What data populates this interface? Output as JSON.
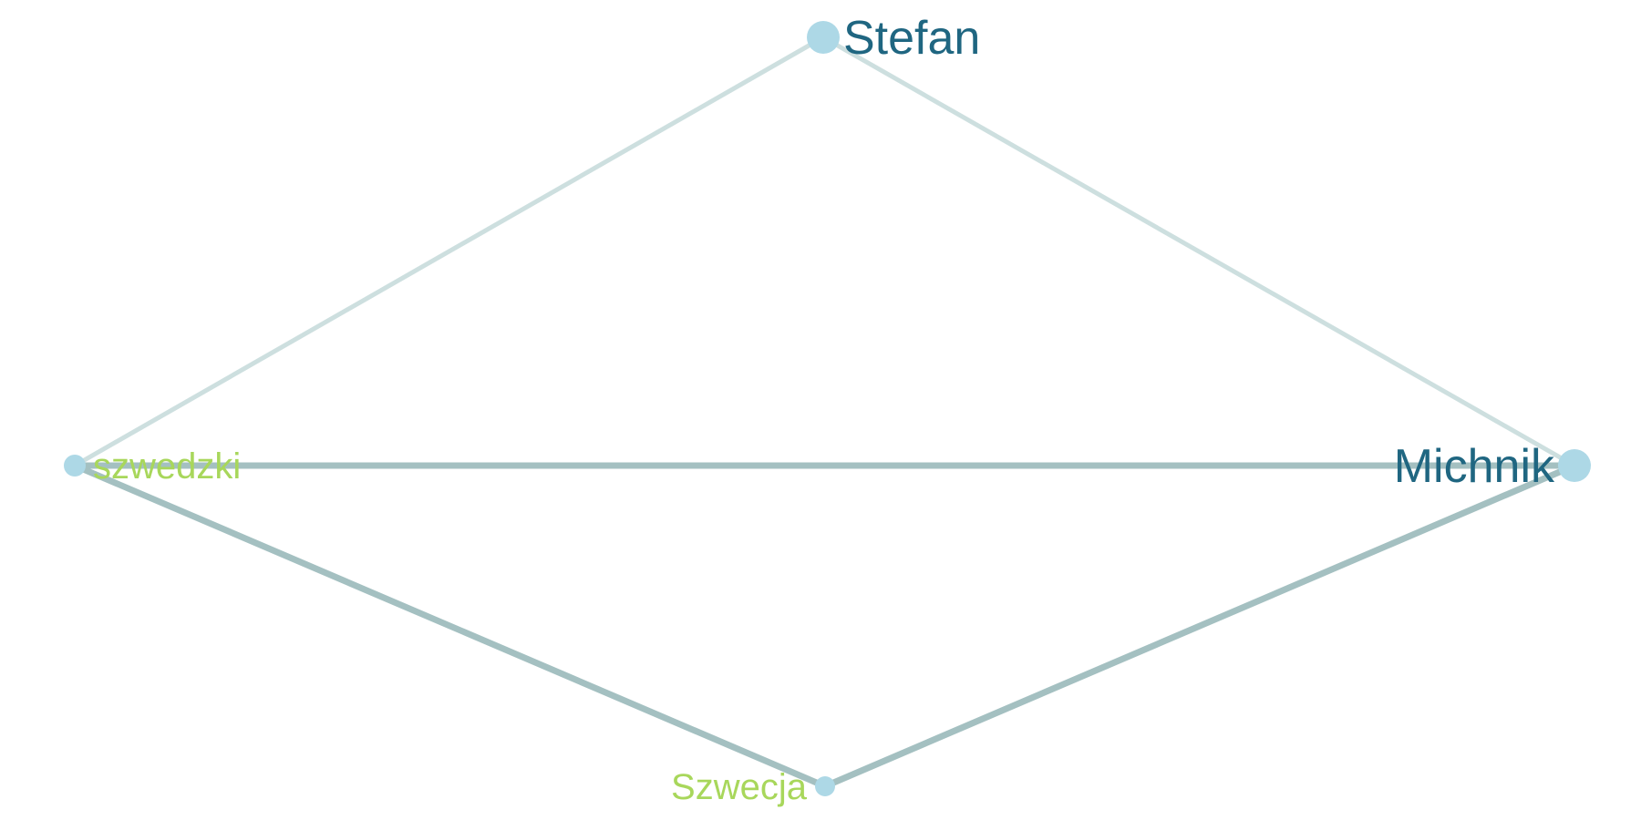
{
  "colors": {
    "node_fill": "#add8e6",
    "label_primary": "#1f6681",
    "label_secondary": "#a8d75b",
    "edge_light": "#cddfdf",
    "edge_strong": "#a4c0c1",
    "background": "#ffffff"
  },
  "nodes": [
    {
      "id": "stefan",
      "label": "Stefan",
      "group": "primary"
    },
    {
      "id": "michnik",
      "label": "Michnik",
      "group": "primary"
    },
    {
      "id": "szwedzki",
      "label": "szwedzki",
      "group": "secondary"
    },
    {
      "id": "szwecja",
      "label": "Szwecja",
      "group": "secondary"
    }
  ],
  "edges": [
    {
      "source": "stefan",
      "target": "szwedzki",
      "strength": "light"
    },
    {
      "source": "stefan",
      "target": "michnik",
      "strength": "light"
    },
    {
      "source": "szwedzki",
      "target": "michnik",
      "strength": "strong"
    },
    {
      "source": "szwedzki",
      "target": "szwecja",
      "strength": "strong"
    },
    {
      "source": "szwecja",
      "target": "michnik",
      "strength": "strong"
    }
  ]
}
